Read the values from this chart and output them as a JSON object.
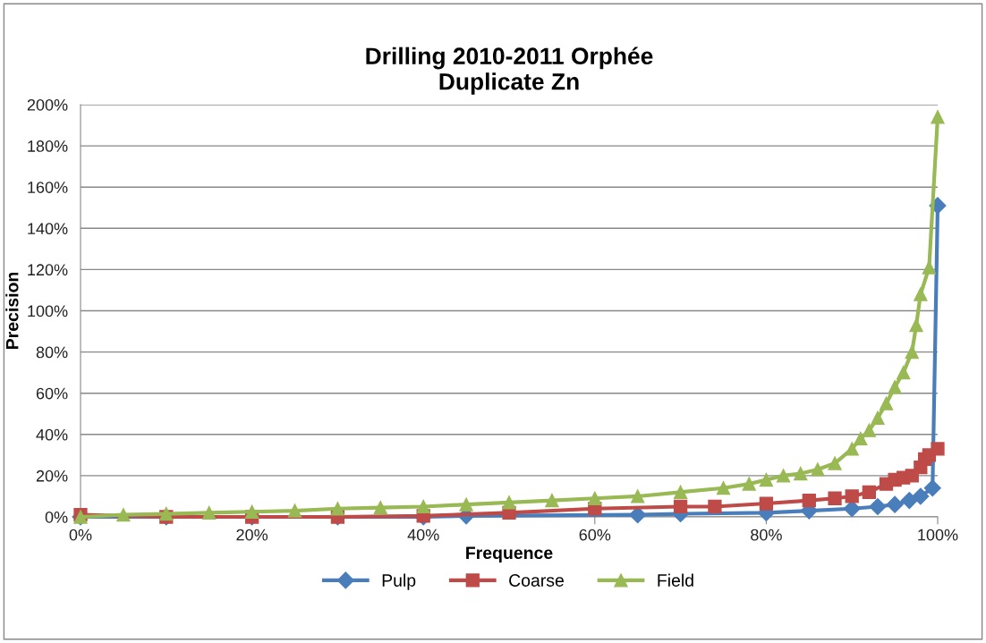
{
  "chart_data": {
    "type": "line",
    "title": "Drilling 2010-2011 Orphée\nDuplicate Zn",
    "xlabel": "Frequence",
    "ylabel": "Precision",
    "xlim": [
      0,
      100
    ],
    "ylim": [
      0,
      200
    ],
    "xticks": [
      {
        "value": 0,
        "label": "0%"
      },
      {
        "value": 20,
        "label": "20%"
      },
      {
        "value": 40,
        "label": "40%"
      },
      {
        "value": 60,
        "label": "60%"
      },
      {
        "value": 80,
        "label": "80%"
      },
      {
        "value": 100,
        "label": "100%"
      }
    ],
    "yticks": [
      {
        "value": 0,
        "label": "0%"
      },
      {
        "value": 20,
        "label": "20%"
      },
      {
        "value": 40,
        "label": "40%"
      },
      {
        "value": 60,
        "label": "60%"
      },
      {
        "value": 80,
        "label": "80%"
      },
      {
        "value": 100,
        "label": "100%"
      },
      {
        "value": 120,
        "label": "120%"
      },
      {
        "value": 140,
        "label": "140%"
      },
      {
        "value": 160,
        "label": "160%"
      },
      {
        "value": 180,
        "label": "180%"
      },
      {
        "value": 200,
        "label": "200%"
      }
    ],
    "grid": "y",
    "legend": "bottom",
    "line_style": "solid",
    "series": [
      {
        "name": "Pulp",
        "color": "#4a7ebb",
        "marker": "diamond",
        "x": [
          0,
          10,
          20,
          30,
          40,
          45,
          65,
          70,
          80,
          85,
          90,
          93,
          95,
          96.7,
          98,
          99.4,
          100
        ],
        "values": [
          0,
          0,
          0,
          0,
          0,
          0.5,
          1,
          1.5,
          2,
          3,
          4,
          5,
          6,
          8,
          10,
          14,
          151
        ]
      },
      {
        "name": "Coarse",
        "color": "#be4b48",
        "marker": "square",
        "x": [
          0,
          10,
          20,
          30,
          40,
          50,
          60,
          70,
          74,
          80,
          85,
          88,
          90,
          92,
          94,
          95,
          96,
          97,
          98,
          98.5,
          99,
          100
        ],
        "values": [
          1,
          0,
          0,
          0,
          0.5,
          2,
          4,
          5,
          5,
          6.5,
          8,
          9,
          10,
          12,
          16,
          18,
          19,
          20,
          24,
          28,
          30,
          33
        ]
      },
      {
        "name": "Field",
        "color": "#98b954",
        "marker": "triangle",
        "x": [
          0,
          5,
          10,
          15,
          20,
          25,
          30,
          35,
          40,
          45,
          50,
          55,
          60,
          65,
          70,
          75,
          78,
          80,
          82,
          84,
          86,
          88,
          90,
          91,
          92,
          93,
          94,
          95,
          96,
          97,
          97.5,
          98,
          99,
          100
        ],
        "values": [
          0,
          1,
          1.5,
          2,
          2.5,
          3,
          4,
          4.5,
          5,
          6,
          7,
          8,
          9,
          10,
          12,
          14,
          16,
          18,
          20,
          21,
          23,
          26,
          33,
          38,
          42,
          48,
          55,
          63,
          70,
          80,
          93,
          108,
          121,
          194
        ]
      }
    ]
  }
}
